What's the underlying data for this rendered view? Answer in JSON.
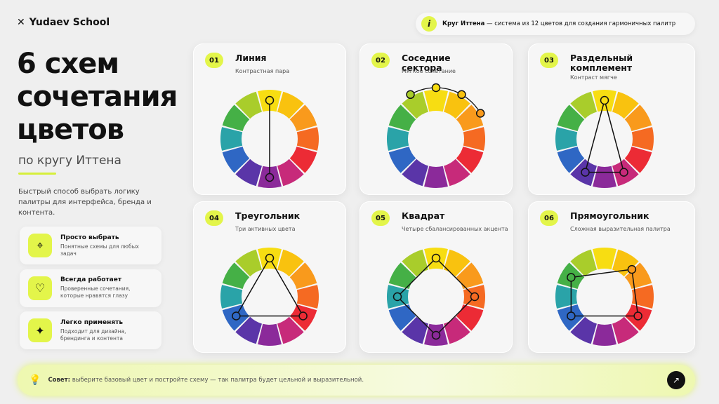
{
  "header": {
    "brand": "Yudaev School",
    "note_bold": "Круг Иттена",
    "note_text": "— система из 12 цветов для создания гармоничных палитр"
  },
  "hero": {
    "title_lines": [
      "6 схем",
      "сочетания",
      "цветов"
    ],
    "subtitle": "по кругу Иттена",
    "description": "Быстрый способ выбрать логику палитры для интерфейса, бренда и контента."
  },
  "features": [
    {
      "title": "Просто выбрать",
      "text": "Понятные схемы для любых задач"
    },
    {
      "title": "Всегда работает",
      "text": "Проверенные сочетания, которые нравятся глазу"
    },
    {
      "title": "Легко применять",
      "text": "Подходит для дизайна, брендинга и контента"
    }
  ],
  "cards": [
    {
      "number": "01",
      "title": "Линия",
      "subtitle": "Контрастная пара"
    },
    {
      "number": "02",
      "title": "Соседние сектора",
      "subtitle": "Мягкое сочетание"
    },
    {
      "number": "03",
      "title": "Раздельный комплемент",
      "subtitle": "Контраст мягче"
    },
    {
      "number": "04",
      "title": "Треугольник",
      "subtitle": "Три активных цвета"
    },
    {
      "number": "05",
      "title": "Квадрат",
      "subtitle": "Четыре сбалансированных акцента"
    },
    {
      "number": "06",
      "title": "Прямоугольник",
      "subtitle": "Сложная выразительная палитра"
    }
  ],
  "tip": {
    "label": "Совет:",
    "text": "выберите базовый цвет и постройте схему — так палитра будет цельной и выразительной."
  }
}
